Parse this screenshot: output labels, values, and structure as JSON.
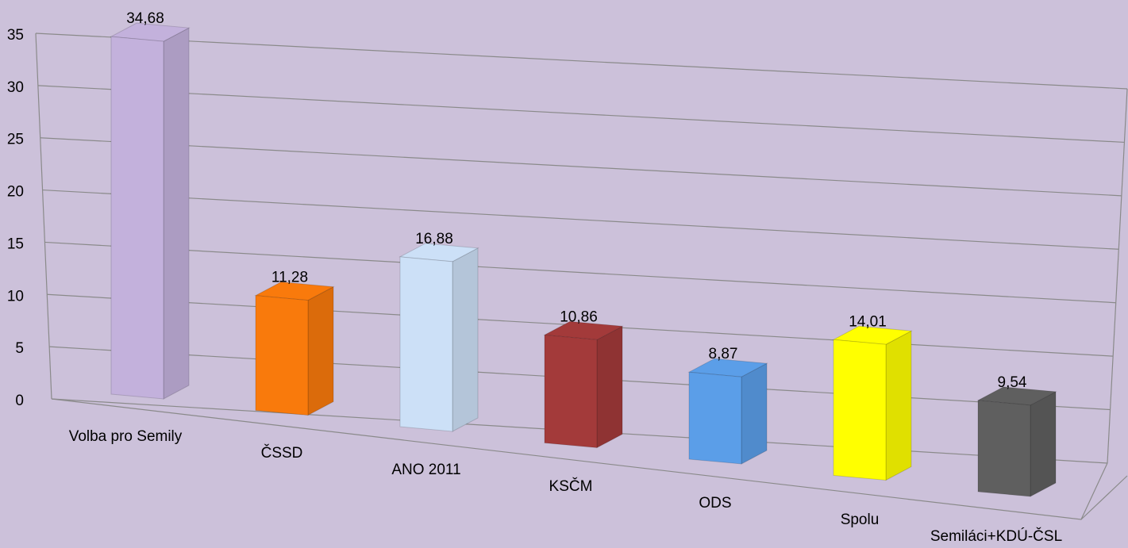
{
  "chart_data": {
    "type": "bar3d",
    "categories": [
      "Volba pro Semily",
      "ČSSD",
      "ANO 2011",
      "KSČM",
      "ODS",
      "Spolu",
      "Semiláci+KDÚ-ČSL"
    ],
    "values": [
      34.68,
      11.28,
      16.88,
      10.86,
      8.87,
      14.01,
      9.54
    ],
    "value_labels": [
      "34,68",
      "11,28",
      "16,88",
      "10,86",
      "8,87",
      "14,01",
      "9,54"
    ],
    "colors": [
      "#c3b1dc",
      "#f97a0c",
      "#cce0f7",
      "#a33a3a",
      "#5b9ee8",
      "#ffff00",
      "#5f5f5f"
    ],
    "ylim": [
      0,
      35
    ],
    "yticks": [
      0,
      5,
      10,
      15,
      20,
      25,
      30,
      35
    ],
    "grid": true
  }
}
